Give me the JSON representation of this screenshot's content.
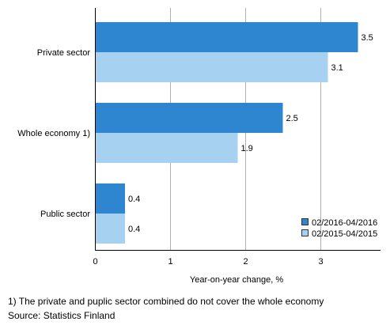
{
  "chart_data": {
    "type": "bar",
    "orientation": "horizontal",
    "categories": [
      "Private sector",
      "Whole economy 1)",
      "Public sector"
    ],
    "series": [
      {
        "name": "02/2016-04/2016",
        "values": [
          3.5,
          2.5,
          0.4
        ],
        "color": "#2f86d0"
      },
      {
        "name": "02/2015-04/2015",
        "values": [
          3.1,
          1.9,
          0.4
        ],
        "color": "#a6d1f0"
      }
    ],
    "data_labels": [
      [
        "3.5",
        "2.5",
        "0.4"
      ],
      [
        "3.1",
        "1.9",
        "0.4"
      ]
    ],
    "xlabel": "Year-on-year change, %",
    "ylabel": "",
    "xlim": [
      0,
      3.8
    ],
    "xticks": [
      0,
      1,
      2,
      3
    ],
    "grid": "vertical",
    "legend_position": "bottom-right"
  },
  "footnotes": {
    "note": "1) The private and puplic sector combined do not cover the whole economy",
    "source": "Source: Statistics Finland"
  }
}
